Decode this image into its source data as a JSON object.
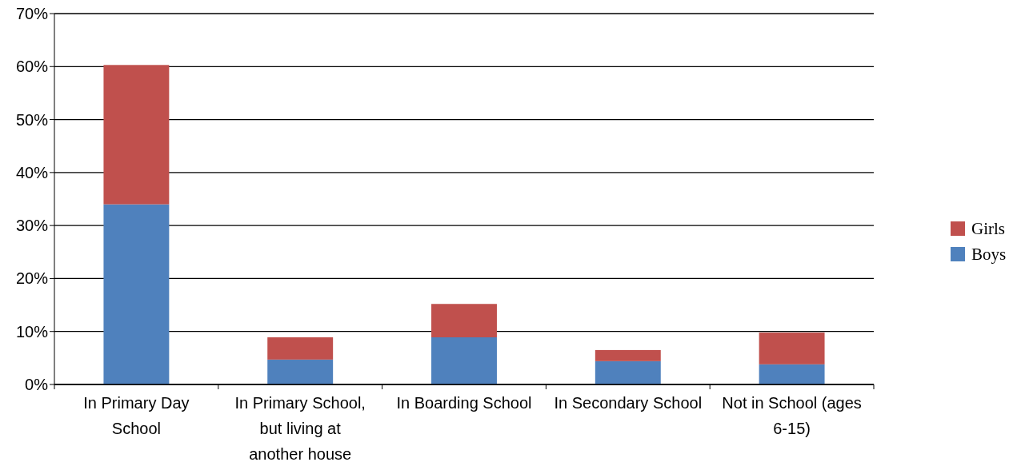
{
  "chart_data": {
    "type": "bar",
    "stacked": true,
    "categories": [
      "In Primary Day School",
      "In Primary School, but living at another house",
      "In Boarding School",
      "In Secondary School",
      "Not in School (ages 6-15)"
    ],
    "series": [
      {
        "name": "Boys",
        "color": "#4f81bd",
        "values": [
          34,
          4.7,
          8.9,
          4.4,
          3.8
        ]
      },
      {
        "name": "Girls",
        "color": "#c0504d",
        "values": [
          26.3,
          4.2,
          6.3,
          2.1,
          6.0
        ]
      }
    ],
    "ylim": [
      0,
      70
    ],
    "yticks": [
      {
        "value": 0,
        "label": "0%"
      },
      {
        "value": 10,
        "label": "10%"
      },
      {
        "value": 20,
        "label": "20%"
      },
      {
        "value": 30,
        "label": "30%"
      },
      {
        "value": 40,
        "label": "40%"
      },
      {
        "value": 50,
        "label": "50%"
      },
      {
        "value": 60,
        "label": "60%"
      },
      {
        "value": 70,
        "label": "70%"
      }
    ],
    "grid": "y",
    "legend": "right"
  }
}
